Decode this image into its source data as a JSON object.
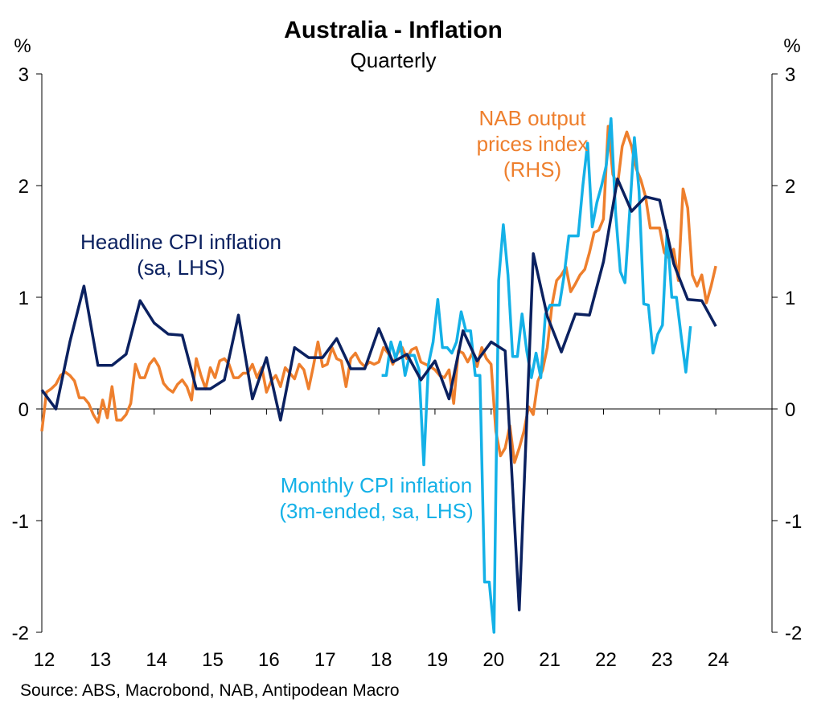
{
  "chart_data": {
    "type": "line",
    "title": "Australia - Inflation",
    "subtitle": "Quarterly",
    "ylabel_left": "%",
    "ylabel_right": "%",
    "ylim_left": [
      -2,
      3
    ],
    "ylim_right": [
      -2,
      3
    ],
    "xlim": [
      2012,
      2025
    ],
    "y_ticks": [
      "-2",
      "-1",
      "0",
      "1",
      "2",
      "3"
    ],
    "y_tick_values": [
      -2,
      -1,
      0,
      1,
      2,
      3
    ],
    "x_ticks": [
      "12",
      "13",
      "14",
      "15",
      "16",
      "17",
      "18",
      "19",
      "20",
      "21",
      "22",
      "23",
      "24"
    ],
    "x_tick_values": [
      2012,
      2013,
      2014,
      2015,
      2016,
      2017,
      2018,
      2019,
      2020,
      2021,
      2022,
      2023,
      2024
    ],
    "source": "Source: ABS, Macrobond, NAB, Antipodean Macro",
    "series": [
      {
        "name": "NAB output prices index (RHS)",
        "label_lines": [
          "NAB output",
          "prices index",
          "(RHS)"
        ],
        "color": "#ee7f2d",
        "axis": "right",
        "x_start": 2012.0,
        "x_step": 0.08333,
        "values": [
          -0.2,
          0.15,
          0.18,
          0.22,
          0.3,
          0.33,
          0.3,
          0.25,
          0.1,
          0.1,
          0.05,
          -0.05,
          -0.12,
          0.08,
          -0.08,
          0.2,
          -0.1,
          -0.1,
          -0.05,
          0.05,
          0.4,
          0.28,
          0.28,
          0.4,
          0.45,
          0.38,
          0.23,
          0.18,
          0.15,
          0.22,
          0.26,
          0.2,
          0.08,
          0.45,
          0.3,
          0.18,
          0.37,
          0.28,
          0.43,
          0.45,
          0.4,
          0.28,
          0.28,
          0.32,
          0.32,
          0.4,
          0.28,
          0.37,
          0.15,
          0.25,
          0.3,
          0.2,
          0.37,
          0.32,
          0.27,
          0.4,
          0.35,
          0.18,
          0.38,
          0.6,
          0.38,
          0.4,
          0.55,
          0.45,
          0.43,
          0.2,
          0.45,
          0.5,
          0.42,
          0.38,
          0.42,
          0.4,
          0.42,
          0.55,
          0.5,
          0.4,
          0.5,
          0.55,
          0.45,
          0.53,
          0.55,
          0.42,
          0.4,
          0.38,
          0.35,
          0.3,
          0.28,
          0.35,
          0.05,
          0.52,
          0.5,
          0.42,
          0.5,
          0.38,
          0.55,
          0.45,
          0.4,
          -0.2,
          -0.42,
          -0.35,
          -0.15,
          -0.48,
          -0.35,
          -0.2,
          0.02,
          -0.05,
          0.25,
          0.35,
          0.55,
          0.93,
          1.15,
          1.2,
          1.27,
          1.05,
          1.12,
          1.2,
          1.25,
          1.4,
          1.58,
          1.6,
          1.7,
          2.53,
          2.1,
          2.0,
          2.35,
          2.48,
          2.35,
          2.15,
          2.05,
          1.9,
          1.62,
          1.62,
          1.62,
          1.4,
          1.35,
          1.43,
          1.15,
          1.97,
          1.8,
          1.2,
          1.1,
          1.2,
          0.95,
          1.1,
          1.28
        ]
      },
      {
        "name": "Monthly CPI inflation (3m-ended, sa, LHS)",
        "label_lines": [
          "Monthly CPI inflation",
          "(3m-ended, sa, LHS)"
        ],
        "color": "#14b1e7",
        "axis": "left",
        "x_start": 2018.05,
        "x_step": 0.08333,
        "values": [
          0.3,
          0.3,
          0.6,
          0.45,
          0.6,
          0.3,
          0.48,
          0.48,
          0.35,
          -0.5,
          0.4,
          0.6,
          0.98,
          0.55,
          0.55,
          0.5,
          0.6,
          0.87,
          0.7,
          0.7,
          0.3,
          0.3,
          -1.55,
          -1.55,
          -2.0,
          1.15,
          1.65,
          1.2,
          0.47,
          0.47,
          0.85,
          0.52,
          0.28,
          0.5,
          0.28,
          0.85,
          0.93,
          0.93,
          0.93,
          1.2,
          1.55,
          1.55,
          1.55,
          2.0,
          2.38,
          1.63,
          1.85,
          2.0,
          2.18,
          2.6,
          1.75,
          1.23,
          1.13,
          1.76,
          2.43,
          1.95,
          0.94,
          0.93,
          0.5,
          0.67,
          0.75,
          1.6,
          1.0,
          1.0,
          0.65,
          0.33,
          0.74
        ]
      },
      {
        "name": "Headline CPI inflation (sa, LHS)",
        "label_lines": [
          "Headline CPI inflation",
          "(sa, LHS)"
        ],
        "color": "#0b2160",
        "axis": "left",
        "x_start": 2012.0,
        "x_step": 0.25,
        "values": [
          0.17,
          0.0,
          0.6,
          1.1,
          0.39,
          0.39,
          0.49,
          0.97,
          0.77,
          0.67,
          0.66,
          0.18,
          0.18,
          0.26,
          0.84,
          0.09,
          0.46,
          -0.1,
          0.55,
          0.46,
          0.46,
          0.63,
          0.36,
          0.36,
          0.72,
          0.42,
          0.49,
          0.26,
          0.43,
          0.09,
          0.7,
          0.43,
          0.6,
          0.52,
          -1.8,
          1.39,
          0.83,
          0.51,
          0.85,
          0.84,
          1.32,
          2.06,
          1.77,
          1.9,
          1.87,
          1.3,
          0.98,
          0.97,
          0.74
        ]
      }
    ]
  }
}
